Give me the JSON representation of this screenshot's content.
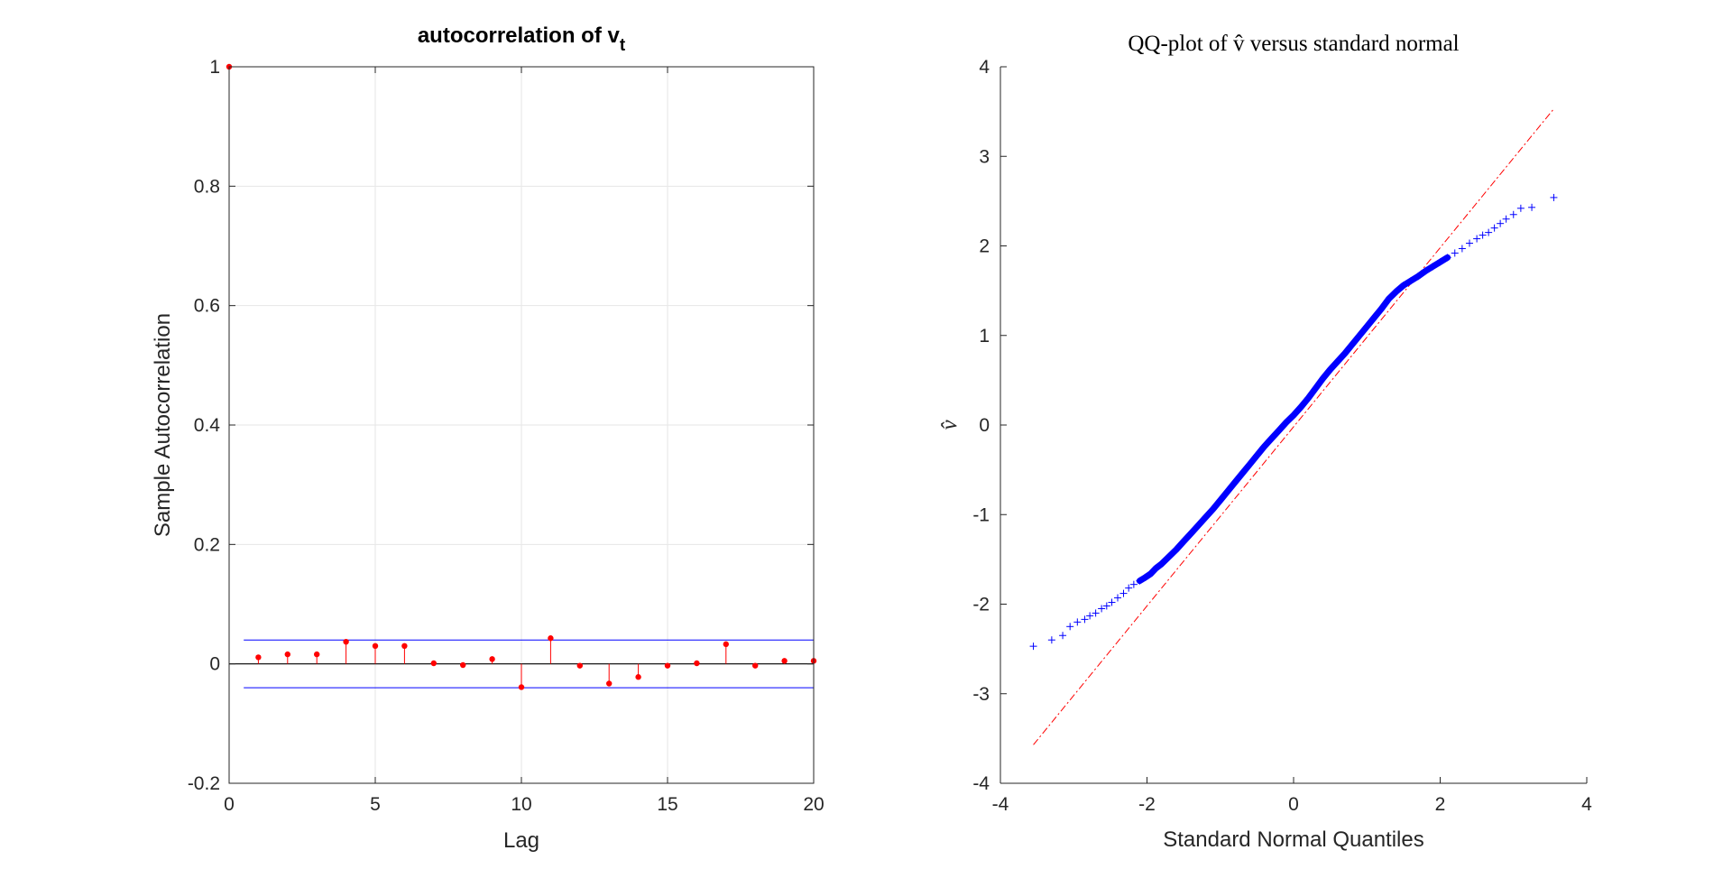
{
  "chart_data": [
    {
      "type": "stem",
      "title": "autocorrelation of v",
      "title_subscript": "t",
      "xlabel": "Lag",
      "ylabel": "Sample Autocorrelation",
      "xlim": [
        0,
        20
      ],
      "ylim": [
        -0.2,
        1
      ],
      "xticks": [
        "0",
        "5",
        "10",
        "15",
        "20"
      ],
      "yticks": [
        "-0.2",
        "0",
        "0.2",
        "0.4",
        "0.6",
        "0.8",
        "1"
      ],
      "grid": true,
      "confidence_bounds": [
        0.04,
        -0.04
      ],
      "series": [
        {
          "x": [
            0,
            1,
            2,
            3,
            4,
            5,
            6,
            7,
            8,
            9,
            10,
            11,
            12,
            13,
            14,
            15,
            16,
            17,
            18,
            19,
            20
          ],
          "y": [
            1,
            0.011,
            0.016,
            0.016,
            0.037,
            0.03,
            0.03,
            0.001,
            -0.002,
            0.008,
            -0.039,
            0.043,
            -0.003,
            -0.033,
            -0.022,
            -0.003,
            0.001,
            0.033,
            -0.003,
            0.005,
            0.005
          ],
          "color": "#ff0000"
        }
      ],
      "bound_color": "#0000ff"
    },
    {
      "type": "scatter",
      "title": "QQ-plot of v̂ versus standard normal",
      "xlabel": "Standard Normal Quantiles",
      "ylabel": "v̂",
      "xlim": [
        -4,
        4
      ],
      "ylim": [
        -4,
        4
      ],
      "xticks": [
        "-4",
        "-2",
        "0",
        "2",
        "4"
      ],
      "yticks": [
        "-4",
        "-3",
        "-2",
        "-1",
        "0",
        "1",
        "2",
        "3",
        "4"
      ],
      "grid": false,
      "marker": "+",
      "marker_color": "#0000ff",
      "reference_line": {
        "x": [
          -3.55,
          3.55
        ],
        "y": [
          -3.57,
          3.53
        ],
        "color": "#ff0000",
        "style": "dash-dot"
      },
      "series": [
        {
          "x": [
            -3.55,
            -3.3,
            -3.15,
            -3.05,
            -2.95,
            -2.85,
            -2.78,
            -2.7,
            -2.62,
            -2.55,
            -2.48,
            -2.4,
            -2.32,
            -2.25,
            -2.18,
            -2.1,
            -2.02,
            -1.95,
            -1.88,
            -1.8,
            -1.7,
            -1.6,
            -1.5,
            -1.4,
            -1.3,
            -1.2,
            -1.1,
            -1.0,
            -0.9,
            -0.8,
            -0.7,
            -0.6,
            -0.5,
            -0.4,
            -0.3,
            -0.2,
            -0.1,
            0.0,
            0.1,
            0.2,
            0.3,
            0.4,
            0.5,
            0.6,
            0.7,
            0.8,
            0.9,
            1.0,
            1.1,
            1.2,
            1.3,
            1.4,
            1.5,
            1.6,
            1.7,
            1.8,
            1.9,
            2.0,
            2.1,
            2.2,
            2.3,
            2.4,
            2.5,
            2.58,
            2.66,
            2.74,
            2.82,
            2.9,
            3.0,
            3.1,
            3.25,
            3.55
          ],
          "y": [
            -2.47,
            -2.4,
            -2.35,
            -2.25,
            -2.2,
            -2.17,
            -2.13,
            -2.1,
            -2.05,
            -2.02,
            -1.98,
            -1.93,
            -1.88,
            -1.82,
            -1.78,
            -1.74,
            -1.7,
            -1.66,
            -1.6,
            -1.55,
            -1.47,
            -1.39,
            -1.3,
            -1.21,
            -1.12,
            -1.03,
            -0.94,
            -0.84,
            -0.74,
            -0.64,
            -0.54,
            -0.44,
            -0.34,
            -0.24,
            -0.15,
            -0.06,
            0.03,
            0.11,
            0.2,
            0.3,
            0.41,
            0.52,
            0.62,
            0.71,
            0.8,
            0.9,
            1.0,
            1.1,
            1.2,
            1.3,
            1.41,
            1.49,
            1.56,
            1.61,
            1.66,
            1.72,
            1.77,
            1.82,
            1.87,
            1.92,
            1.97,
            2.03,
            2.08,
            2.12,
            2.15,
            2.2,
            2.25,
            2.3,
            2.35,
            2.42,
            2.43,
            2.54
          ]
        }
      ]
    }
  ]
}
